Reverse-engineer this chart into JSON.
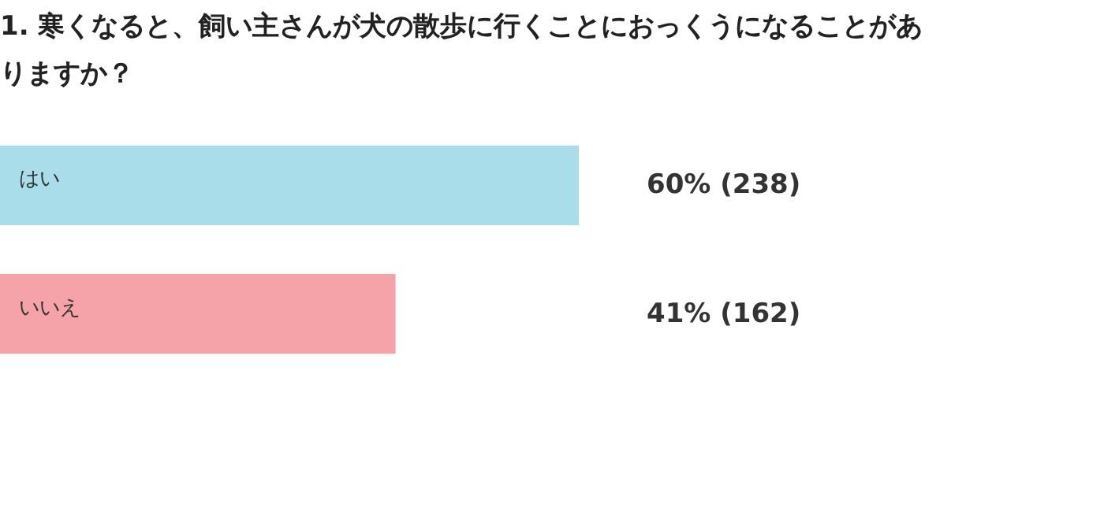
{
  "chart_data": {
    "type": "bar",
    "orientation": "horizontal",
    "title": "1. 寒くなると、飼い主さんが犬の散歩に行くことにおっくうになることがありますか？",
    "categories": [
      "はい",
      "いいえ"
    ],
    "values": [
      60,
      41
    ],
    "colors": [
      "#a8dde9",
      "#f5a3a8"
    ],
    "value_labels": [
      "60% (238)",
      "41% (162)"
    ],
    "tick_labels": false
  }
}
